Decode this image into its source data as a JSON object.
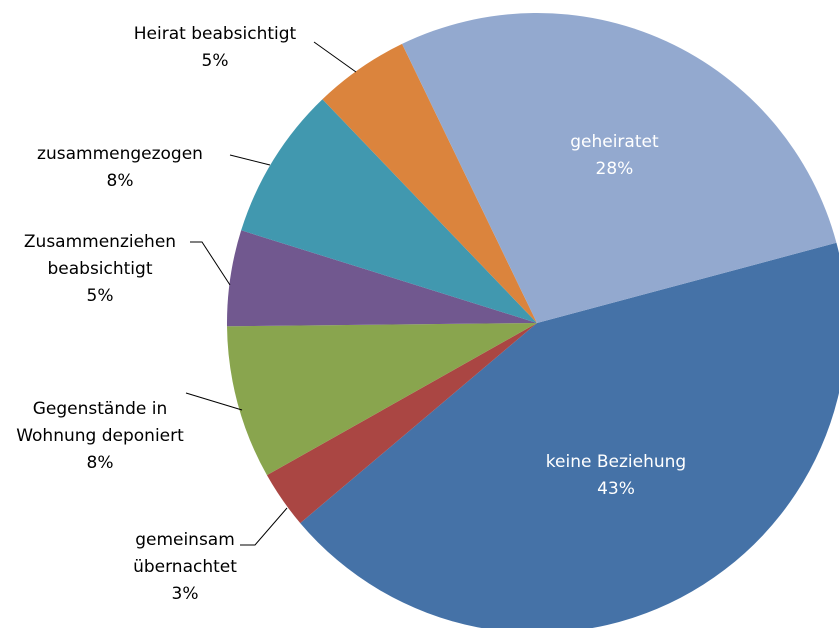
{
  "chart_data": {
    "type": "pie",
    "categories": [
      "keine Beziehung",
      "gemeinsam übernachtet",
      "Gegenstände in Wohnung deponiert",
      "Zusammenziehen beabsichtigt",
      "zusammengezogen",
      "Heirat beabsichtigt",
      "geheiratet"
    ],
    "values": [
      43,
      3,
      8,
      5,
      8,
      5,
      28
    ],
    "value_labels": [
      "43%",
      "3%",
      "8%",
      "5%",
      "8%",
      "5%",
      "28%"
    ],
    "colors": [
      "#4572a7",
      "#aa4643",
      "#89a54e",
      "#71588f",
      "#4198af",
      "#db843d",
      "#93a9cf"
    ]
  }
}
